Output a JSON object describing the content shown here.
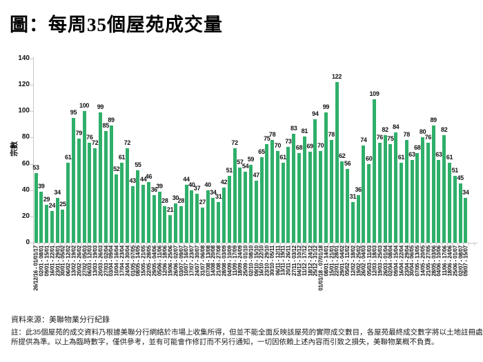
{
  "title": "圖：每周35個屋苑成交量",
  "source": "資料來源：美聯物業分行紀錄",
  "note_line1": "註：此35個屋苑的成交資料乃根據美聯分行網絡於市場上收集所得，但並不能全面反映該屋苑的實際成交數目，各屋苑最終成交數字將以土地註冊處",
  "note_line2": "所提供為準。以上為臨時數字，僅供參考，並有可能會作修訂而不另行通知，一切因依賴上述內容而引致之損失，美聯物業概不負責。",
  "chart_data": {
    "type": "bar",
    "title": "圖：每周35個屋苑成交量",
    "xlabel": "",
    "ylabel": "宗數",
    "ylim": [
      0,
      140
    ],
    "yticks": [
      0,
      20,
      40,
      60,
      80,
      100,
      120,
      140
    ],
    "grid": false,
    "legend": "none",
    "bar_color": "#2FAF6A",
    "axis_color": "#C8C8C8",
    "categories": [
      "26/12/16 - 01/01/17",
      "02/01 - 08/01",
      "09/01 - 15/01",
      "16/01 - 22/01",
      "23/01 - 29/01",
      "30/01 - 05/02",
      "06/02 - 12/02",
      "13/02 - 19/02",
      "20/02 - 26/02",
      "27/02 - 05/03",
      "06/03 - 12/03",
      "13/03 - 19/03",
      "20/03 - 26/03",
      "27/03 - 02/04",
      "03/04 - 09/04",
      "10/04 - 16/04",
      "17/04 - 23/04",
      "24/04 - 30/04",
      "01/05 - 07/05",
      "08/05 - 14/05",
      "15/05 - 21/05",
      "22/05 - 28/05",
      "29/05 - 04/06",
      "05/06 - 11/06",
      "12/06 - 18/06",
      "19/06 - 25/06",
      "26/06 - 02/07",
      "03/07 - 09/07",
      "10/07 - 16/07",
      "17/07 - 23/07",
      "24/07 - 30/07",
      "31/07 - 06/08",
      "07/08 - 13/08",
      "14/08 - 20/08",
      "21/08 - 27/08",
      "28/08 - 03/09",
      "04/09 - 10/09",
      "11/09 - 17/09",
      "18/09 - 24/09",
      "25/09 - 01/10",
      "02/10 - 08/10",
      "09/10 - 15/10",
      "16/10 - 22/10",
      "23/10 - 29/10",
      "30/10 - 05/11",
      "06/11 - 12/11",
      "13/11 - 19/11",
      "20/11 - 26/11",
      "27/11 - 03/12",
      "04/12 - 10/12",
      "11/12 - 17/12",
      "18/12 - 24/12",
      "25/12 - 31/12",
      "01/01/18 - 07/01/18",
      "08/01 - 14/01",
      "15/01 - 21/01",
      "22/01 - 28/01",
      "29/01 - 04/02",
      "05/02 - 11/02",
      "12/02 - 18/02",
      "19/02 - 25/02",
      "26/02 - 04/03",
      "05/03 - 11/03",
      "12/03 - 18/03",
      "19/03 - 25/03",
      "26/03 - 01/04",
      "02/04 - 08/04",
      "09/04 - 15/04",
      "16/04 - 22/04",
      "23/04 - 29/04",
      "30/04 - 06/05",
      "07/05 - 13/05",
      "14/05 - 20/05",
      "21/05 - 27/05",
      "28/05 - 03/06",
      "04/06 - 10/06",
      "11/06 - 17/06",
      "18/06 - 24/06",
      "25/06 - 01/07",
      "02/07 - 08/07",
      "09/07 - 15/07"
    ],
    "values": [
      53,
      39,
      29,
      24,
      34,
      25,
      61,
      95,
      79,
      100,
      76,
      72,
      99,
      85,
      89,
      52,
      61,
      72,
      43,
      55,
      44,
      46,
      36,
      39,
      28,
      21,
      30,
      28,
      44,
      40,
      37,
      27,
      40,
      34,
      31,
      42,
      51,
      72,
      57,
      54,
      59,
      47,
      65,
      75,
      78,
      70,
      61,
      73,
      83,
      68,
      81,
      69,
      94,
      70,
      99,
      78,
      122,
      62,
      56,
      31,
      36,
      74,
      60,
      109,
      76,
      82,
      75,
      84,
      61,
      78,
      63,
      68,
      80,
      76,
      89,
      63,
      82,
      61,
      51,
      45,
      34
    ]
  }
}
